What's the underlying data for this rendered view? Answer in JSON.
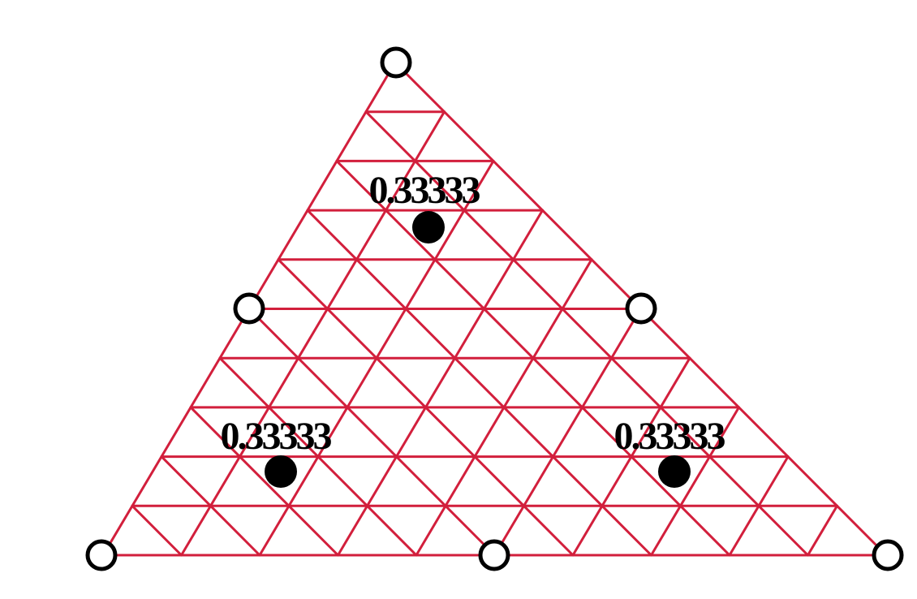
{
  "colors": {
    "mesh": "#d21f3c",
    "node_fill": "#ffffff",
    "node_stroke": "#000000",
    "point_fill": "#000000",
    "label": "#000000",
    "background": "#ffffff"
  },
  "mesh": {
    "subdivisions": 10
  },
  "element_nodes": [
    {
      "id": "vertex-top"
    },
    {
      "id": "vertex-bottom-left"
    },
    {
      "id": "vertex-bottom-right"
    },
    {
      "id": "midside-left"
    },
    {
      "id": "midside-right"
    },
    {
      "id": "midside-bottom"
    }
  ],
  "integration_points": [
    {
      "id": "top",
      "weight_label": "0.33333"
    },
    {
      "id": "bottom-left",
      "weight_label": "0.33333"
    },
    {
      "id": "bottom-right",
      "weight_label": "0.33333"
    }
  ]
}
